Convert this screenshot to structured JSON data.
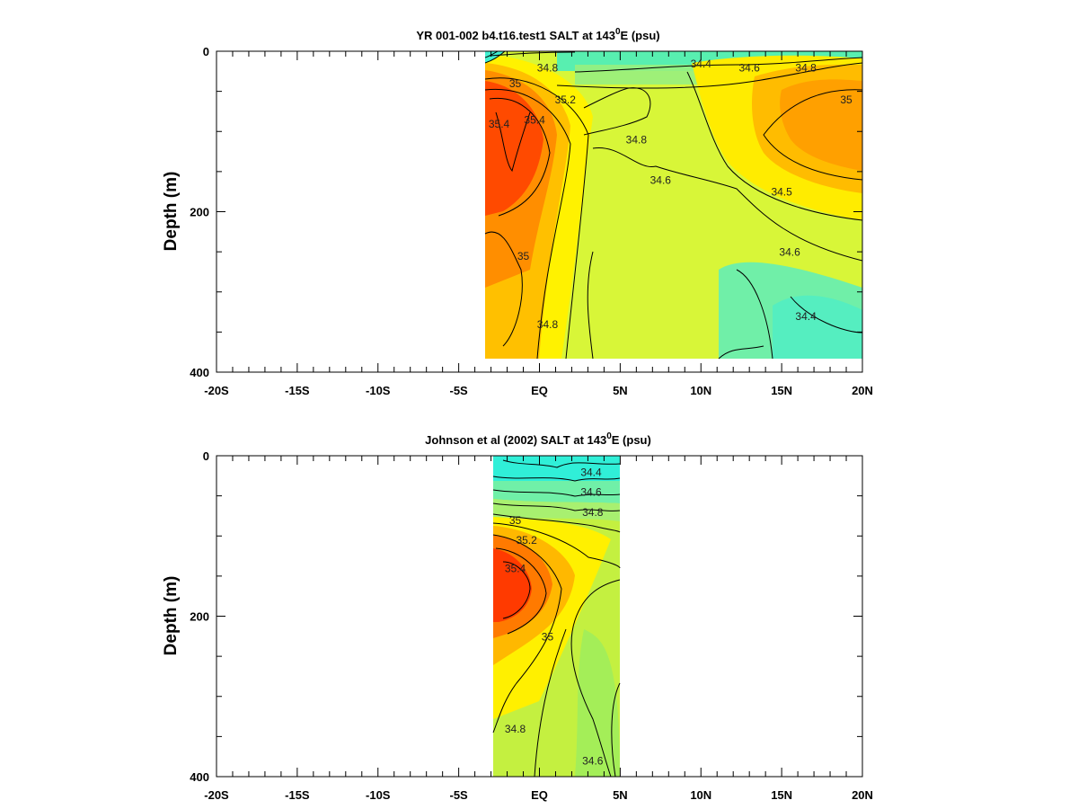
{
  "chart_data": [
    {
      "type": "heatmap",
      "title": "YR 001-002 b4.t16.test1 SALT at 143",
      "title_superscript": "0",
      "title_suffix": "E (psu)",
      "ylabel": "Depth (m)",
      "y_tick_labels": [
        "0",
        "200",
        "400"
      ],
      "x_tick_labels": [
        "-20S",
        "-15S",
        "-10S",
        "-5S",
        "EQ",
        "5N",
        "10N",
        "15N",
        "20N"
      ],
      "xlim": [
        -20,
        20
      ],
      "ylim": [
        0,
        400
      ],
      "y_inverted": true,
      "data_extent": {
        "lat": [
          -3.3,
          20
        ],
        "depth": [
          0,
          385
        ]
      },
      "colormap": [
        "#00FFEE",
        "#40F5C0",
        "#80F090",
        "#C0F040",
        "#FFFF00",
        "#FFCC00",
        "#FF9900",
        "#FF5500",
        "#FF2200"
      ],
      "color_range": [
        34.2,
        35.6
      ],
      "contour_labels": [
        {
          "text": "34.4",
          "lat": 10.0,
          "depth": 20
        },
        {
          "text": "34.6",
          "lat": 13.0,
          "depth": 25
        },
        {
          "text": "34.8",
          "lat": 16.5,
          "depth": 25
        },
        {
          "text": "34.8",
          "lat": 0.5,
          "depth": 25
        },
        {
          "text": "35",
          "lat": -1.5,
          "depth": 45
        },
        {
          "text": "35.2",
          "lat": 1.6,
          "depth": 65
        },
        {
          "text": "35.4",
          "lat": -0.3,
          "depth": 90
        },
        {
          "text": "35.4",
          "lat": -2.5,
          "depth": 95
        },
        {
          "text": "34.8",
          "lat": 6.0,
          "depth": 115
        },
        {
          "text": "35",
          "lat": 19.0,
          "depth": 65
        },
        {
          "text": "34.6",
          "lat": 7.5,
          "depth": 165
        },
        {
          "text": "34.5",
          "lat": 15.0,
          "depth": 180
        },
        {
          "text": "34.6",
          "lat": 15.5,
          "depth": 255
        },
        {
          "text": "35",
          "lat": -1.0,
          "depth": 260
        },
        {
          "text": "34.8",
          "lat": 0.5,
          "depth": 345
        },
        {
          "text": "34.4",
          "lat": 16.5,
          "depth": 335
        }
      ]
    },
    {
      "type": "heatmap",
      "title": "Johnson et al (2002) SALT at 143",
      "title_superscript": "0",
      "title_suffix": "E (psu)",
      "ylabel": "Depth (m)",
      "y_tick_labels": [
        "0",
        "200",
        "400"
      ],
      "x_tick_labels": [
        "-20S",
        "-15S",
        "-10S",
        "-5S",
        "EQ",
        "5N",
        "10N",
        "15N",
        "20N"
      ],
      "xlim": [
        -20,
        20
      ],
      "ylim": [
        0,
        400
      ],
      "y_inverted": true,
      "data_extent": {
        "lat": [
          -2.8,
          5
        ],
        "depth": [
          0,
          400
        ]
      },
      "colormap": [
        "#00FFEE",
        "#40F5C0",
        "#80F090",
        "#C0F040",
        "#FFFF00",
        "#FFCC00",
        "#FF9900",
        "#FF5500",
        "#FF2200"
      ],
      "color_range": [
        34.2,
        35.6
      ],
      "contour_labels": [
        {
          "text": "34.4",
          "lat": 3.2,
          "depth": 25
        },
        {
          "text": "34.6",
          "lat": 3.2,
          "depth": 50
        },
        {
          "text": "34.8",
          "lat": 3.3,
          "depth": 75
        },
        {
          "text": "35",
          "lat": -1.5,
          "depth": 85
        },
        {
          "text": "35.2",
          "lat": -0.8,
          "depth": 110
        },
        {
          "text": "35.4",
          "lat": -1.5,
          "depth": 145
        },
        {
          "text": "35",
          "lat": 0.5,
          "depth": 230
        },
        {
          "text": "34.8",
          "lat": -1.5,
          "depth": 345
        },
        {
          "text": "34.6",
          "lat": 3.3,
          "depth": 385
        }
      ]
    }
  ]
}
